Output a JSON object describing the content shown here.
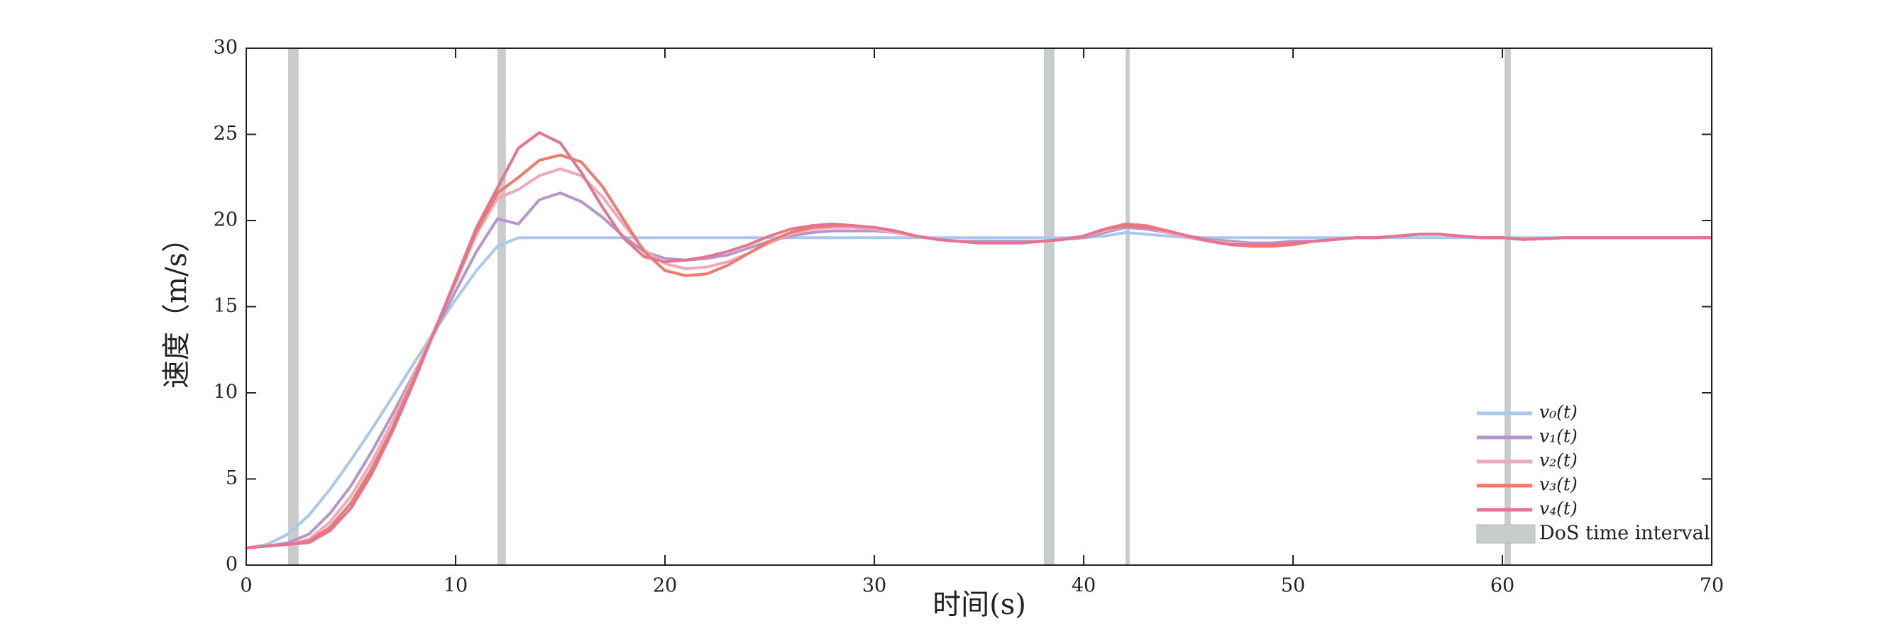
{
  "chart_data": {
    "type": "line",
    "x_label": "时间(s)",
    "y_label": "速度（m/s）",
    "xlim": [
      0,
      70
    ],
    "xticks": [
      0,
      10,
      20,
      30,
      40,
      50,
      60,
      70
    ],
    "ylim": [
      0,
      30
    ],
    "yticks": [
      0,
      5,
      10,
      15,
      20,
      25,
      30
    ],
    "x": [
      0,
      1,
      2,
      3,
      4,
      5,
      6,
      7,
      8,
      9,
      10,
      11,
      12,
      13,
      14,
      15,
      16,
      17,
      18,
      19,
      20,
      21,
      22,
      23,
      24,
      25,
      26,
      27,
      28,
      29,
      30,
      31,
      32,
      33,
      34,
      35,
      36,
      37,
      38,
      39,
      40,
      41,
      42,
      43,
      44,
      45,
      46,
      47,
      48,
      49,
      50,
      51,
      52,
      53,
      54,
      55,
      56,
      57,
      58,
      59,
      60,
      61,
      62,
      63,
      64,
      65,
      66,
      67,
      68,
      69,
      70
    ],
    "dos_intervals": [
      [
        2,
        2.5
      ],
      [
        12,
        12.4
      ],
      [
        38.1,
        38.6
      ],
      [
        42,
        42.2
      ],
      [
        60.1,
        60.4
      ]
    ],
    "dos_label": "DoS time interval",
    "dos_color": "#c8cccc",
    "legend": "lower right",
    "series": [
      {
        "name": "v₀(t)",
        "color": "#a9c8ec",
        "values": [
          1,
          1.2,
          1.8,
          2.9,
          4.4,
          6.1,
          7.9,
          9.8,
          11.7,
          13.6,
          15.4,
          17.1,
          18.5,
          19,
          19,
          19,
          19,
          19,
          19,
          19,
          19,
          19,
          19,
          19,
          19,
          19,
          19,
          19,
          19,
          19,
          19,
          19,
          19,
          19,
          19,
          19,
          19,
          19,
          19,
          19,
          19,
          19.1,
          19.3,
          19.2,
          19.1,
          19,
          19,
          19,
          19,
          19,
          19,
          19,
          19,
          19,
          19,
          19,
          19,
          19,
          19,
          19,
          19,
          19,
          19,
          19,
          19,
          19,
          19,
          19,
          19,
          19,
          19
        ]
      },
      {
        "name": "v₁(t)",
        "color": "#b596c9",
        "values": [
          1,
          1.1,
          1.3,
          1.8,
          3.0,
          4.6,
          6.6,
          8.8,
          11.1,
          13.5,
          15.9,
          18.2,
          20.1,
          19.8,
          21.2,
          21.6,
          21.1,
          20.2,
          19.1,
          18.2,
          17.8,
          17.7,
          17.8,
          18.0,
          18.4,
          18.8,
          19.1,
          19.3,
          19.4,
          19.4,
          19.4,
          19.3,
          19.1,
          18.9,
          18.8,
          18.8,
          18.8,
          18.8,
          18.8,
          18.9,
          19.0,
          19.3,
          19.6,
          19.5,
          19.3,
          19.1,
          18.9,
          18.8,
          18.7,
          18.7,
          18.8,
          18.8,
          18.9,
          19,
          19,
          19.1,
          19.2,
          19.2,
          19.1,
          19,
          19,
          18.9,
          18.95,
          19,
          19,
          19,
          19,
          19,
          19,
          19,
          19
        ]
      },
      {
        "name": "v₂(t)",
        "color": "#f0a8bf",
        "values": [
          1,
          1.1,
          1.2,
          1.5,
          2.5,
          4.0,
          6.0,
          8.4,
          11.0,
          13.7,
          16.4,
          19.2,
          21.3,
          21.8,
          22.6,
          23.0,
          22.6,
          21.4,
          19.8,
          18.3,
          17.5,
          17.2,
          17.3,
          17.6,
          18.1,
          18.7,
          19.2,
          19.5,
          19.6,
          19.6,
          19.5,
          19.3,
          19.1,
          18.9,
          18.8,
          18.7,
          18.7,
          18.7,
          18.8,
          18.9,
          19.1,
          19.4,
          19.7,
          19.6,
          19.3,
          19.0,
          18.8,
          18.7,
          18.6,
          18.6,
          18.7,
          18.8,
          18.9,
          19,
          19,
          19.1,
          19.2,
          19.2,
          19.1,
          19,
          19,
          18.9,
          18.95,
          19,
          19,
          19,
          19,
          19,
          19,
          19,
          19
        ]
      },
      {
        "name": "v₃(t)",
        "color": "#ec7b67",
        "values": [
          1,
          1.1,
          1.2,
          1.4,
          2.2,
          3.6,
          5.6,
          8.0,
          10.8,
          13.6,
          16.5,
          19.4,
          21.6,
          22.5,
          23.5,
          23.8,
          23.4,
          22.0,
          20.1,
          18.2,
          17.1,
          16.8,
          16.9,
          17.4,
          18.1,
          18.8,
          19.3,
          19.6,
          19.7,
          19.7,
          19.6,
          19.4,
          19.1,
          18.9,
          18.8,
          18.7,
          18.7,
          18.7,
          18.8,
          18.9,
          19.1,
          19.5,
          19.8,
          19.7,
          19.4,
          19.1,
          18.8,
          18.6,
          18.5,
          18.5,
          18.6,
          18.8,
          18.9,
          19,
          19,
          19.1,
          19.2,
          19.2,
          19.1,
          19,
          19,
          18.9,
          18.95,
          19,
          19,
          19,
          19,
          19,
          19,
          19,
          19
        ]
      },
      {
        "name": "v₄(t)",
        "color": "#e57391",
        "values": [
          1,
          1.1,
          1.2,
          1.3,
          2.0,
          3.3,
          5.3,
          7.8,
          10.6,
          13.6,
          16.6,
          19.6,
          21.9,
          24.2,
          25.1,
          24.5,
          22.8,
          20.8,
          19.0,
          17.9,
          17.6,
          17.7,
          17.9,
          18.2,
          18.6,
          19.1,
          19.5,
          19.7,
          19.8,
          19.7,
          19.6,
          19.4,
          19.1,
          18.9,
          18.8,
          18.7,
          18.7,
          18.7,
          18.8,
          18.9,
          19.1,
          19.5,
          19.7,
          19.6,
          19.4,
          19.1,
          18.8,
          18.6,
          18.6,
          18.6,
          18.7,
          18.8,
          18.9,
          19,
          19,
          19.1,
          19.2,
          19.2,
          19.1,
          19,
          19,
          18.9,
          18.95,
          19,
          19,
          19,
          19,
          19,
          19,
          19,
          19
        ]
      }
    ]
  }
}
